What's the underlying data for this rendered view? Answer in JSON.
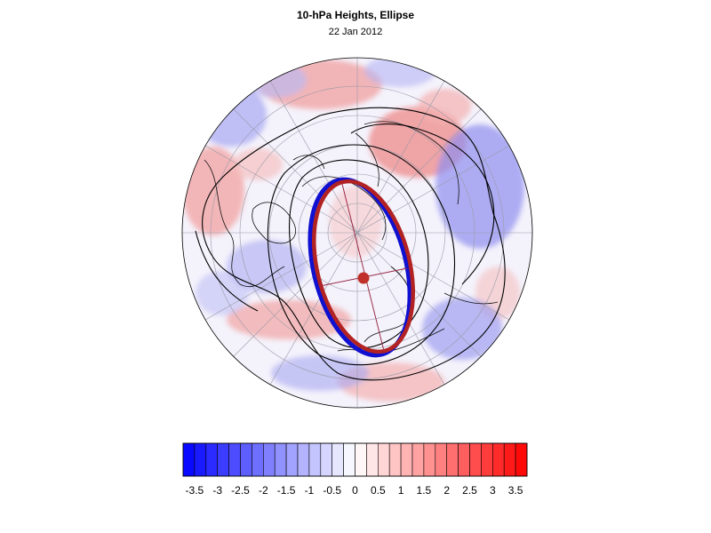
{
  "figure": {
    "title": "10-hPa Heights, Ellipse",
    "date": "22 Jan 2012"
  },
  "colors": {
    "ellipse_fit": "#b22222",
    "ellipse_obs": "#1010d0",
    "center_marker": "#c0302a",
    "contour": "#000000"
  },
  "colorbar": {
    "levels": [
      -3.75,
      -3.5,
      -3.25,
      -3,
      -2.75,
      -2.5,
      -2.25,
      -2,
      -1.75,
      -1.5,
      -1.25,
      -1,
      -0.75,
      -0.5,
      -0.25,
      0,
      0.25,
      0.5,
      0.75,
      1,
      1.25,
      1.5,
      1.75,
      2,
      2.25,
      2.5,
      2.75,
      3,
      3.25,
      3.5,
      3.75
    ],
    "tick_labels": [
      "-3.5",
      "-3",
      "-2.5",
      "-2",
      "-1.5",
      "-1",
      "-0.5",
      "0",
      "0.5",
      "1",
      "1.5",
      "2",
      "2.5",
      "3",
      "3.5"
    ],
    "tick_values": [
      -3.5,
      -3,
      -2.5,
      -2,
      -1.5,
      -1,
      -0.5,
      0,
      0.5,
      1,
      1.5,
      2,
      2.5,
      3,
      3.5
    ],
    "vmin": -3.75,
    "vmax": 3.75
  }
}
